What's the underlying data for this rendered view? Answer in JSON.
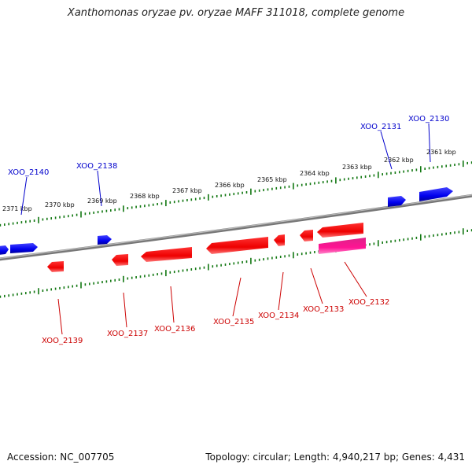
{
  "title": "Xanthomonas oryzae pv. oryzae MAFF 311018, complete genome",
  "footer": {
    "accession": "Accession: NC_007705",
    "topology": "Topology: circular; Length: 4,940,217 bp; Genes: 4,431"
  },
  "colors": {
    "forward": "#0000ee",
    "reverse": "#ee0000",
    "reverse_alt": "#ee1188",
    "backbone": "#888888",
    "ticks": "#117711",
    "label_top": "#0000cc",
    "label_bottom": "#cc0000"
  },
  "ruler": {
    "labels": [
      "2371 kbp",
      "2370 kbp",
      "2369 kbp",
      "2368 kbp",
      "2367 kbp",
      "2366 kbp",
      "2365 kbp",
      "2364 kbp",
      "2363 kbp",
      "2362 kbp",
      "2361 kbp"
    ]
  },
  "genes_top": [
    "XOO_2140",
    "XOO_2138",
    "XOO_2131",
    "XOO_2130"
  ],
  "genes_bottom": [
    "XOO_2139",
    "XOO_2137",
    "XOO_2136",
    "XOO_2135",
    "XOO_2134",
    "XOO_2133",
    "XOO_2132"
  ]
}
